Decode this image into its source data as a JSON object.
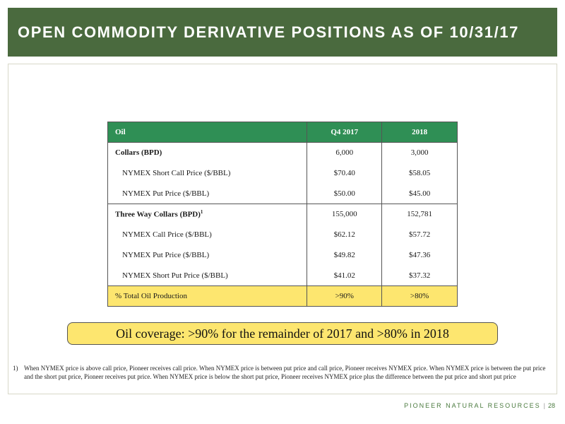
{
  "header": {
    "title": "OPEN COMMODITY DERIVATIVE POSITIONS AS OF 10/31/17"
  },
  "table": {
    "headers": [
      "Oil",
      "Q4 2017",
      "2018"
    ],
    "rows": [
      {
        "label": "Collars (BPD)",
        "q4_2017": "6,000",
        "y2018": "3,000"
      },
      {
        "label": "NYMEX Short Call Price ($/BBL)",
        "q4_2017": "$70.40",
        "y2018": "$58.05"
      },
      {
        "label": "NYMEX Put Price ($/BBL)",
        "q4_2017": "$50.00",
        "y2018": "$45.00"
      },
      {
        "label": "Three Way Collars (BPD)",
        "sup": "1",
        "q4_2017": "155,000",
        "y2018": "152,781"
      },
      {
        "label": "NYMEX Call Price ($/BBL)",
        "q4_2017": "$62.12",
        "y2018": "$57.72"
      },
      {
        "label": "NYMEX Put Price ($/BBL)",
        "q4_2017": "$49.82",
        "y2018": "$47.36"
      },
      {
        "label": "NYMEX Short Put Price ($/BBL)",
        "q4_2017": "$41.02",
        "y2018": "$37.32"
      }
    ],
    "total": {
      "label": "% Total Oil Production",
      "q4_2017": ">90%",
      "y2018": ">80%"
    }
  },
  "callout": {
    "text": "Oil coverage: >90% for the remainder of 2017 and >80% in 2018"
  },
  "footnote": {
    "number": "1)",
    "text": "When NYMEX price is above call price, Pioneer receives call price. When NYMEX price is between put price and call price, Pioneer receives NYMEX price. When NYMEX price is between the put price and the short put price, Pioneer receives put price. When NYMEX price is below the short put price, Pioneer receives NYMEX price plus the difference between the put price and short put price"
  },
  "footer": {
    "company": "PIONEER NATURAL RESOURCES",
    "separator": "|",
    "page_number": "28"
  },
  "colors": {
    "header_bg": "#4a6a3e",
    "table_header_bg": "#2f8f55",
    "highlight": "#fde66f"
  }
}
